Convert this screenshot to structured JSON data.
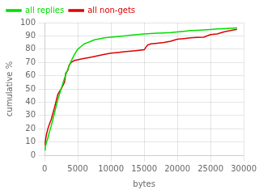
{
  "chart_data": {
    "type": "line",
    "xlabel": "bytes",
    "ylabel": "cumulative %",
    "xlim": [
      0,
      30000
    ],
    "ylim": [
      0,
      100
    ],
    "xticks": [
      0,
      5000,
      10000,
      15000,
      20000,
      25000,
      30000
    ],
    "yticks": [
      0,
      10,
      20,
      30,
      40,
      50,
      60,
      70,
      80,
      90,
      100
    ],
    "grid": true,
    "legend": "upper left",
    "series": [
      {
        "name": "all replies",
        "color": "#00dd00",
        "x": [
          0,
          100,
          200,
          300,
          500,
          700,
          1000,
          1500,
          2000,
          2500,
          3000,
          3500,
          4000,
          4500,
          5000,
          5500,
          6000,
          6500,
          7000,
          7500,
          8000,
          9000,
          10000,
          11000,
          12000,
          13000,
          14000,
          15000,
          16000,
          17000,
          18000,
          19000,
          20000,
          21000,
          22000,
          23000,
          24000,
          25000,
          26000,
          27000,
          28000,
          29000
        ],
        "values": [
          4,
          6,
          8,
          10,
          13,
          17,
          22,
          32,
          42,
          50,
          58,
          65,
          71,
          76,
          80,
          82,
          84,
          85,
          86,
          87,
          87.5,
          88.5,
          89,
          89.5,
          90,
          90.5,
          91,
          91.5,
          91.8,
          92,
          92.3,
          92.5,
          93,
          93.5,
          94,
          94.2,
          94.5,
          94.8,
          95.2,
          95.5,
          95.8,
          96
        ]
      },
      {
        "name": "all non-gets",
        "color": "#dd0000",
        "x": [
          0,
          100,
          200,
          300,
          500,
          700,
          1000,
          1500,
          2000,
          2500,
          3000,
          3200,
          3500,
          3700,
          4000,
          4500,
          5000,
          5500,
          6000,
          7000,
          8000,
          9000,
          10000,
          11000,
          12000,
          13000,
          14000,
          15000,
          15500,
          16000,
          17000,
          18000,
          19000,
          20000,
          21000,
          22000,
          23000,
          24000,
          25000,
          26000,
          27000,
          28000,
          29000
        ],
        "values": [
          8,
          10,
          13,
          16,
          20,
          23,
          27,
          36,
          46,
          50,
          55,
          62,
          64,
          68,
          70,
          71.5,
          72,
          72.5,
          73,
          74,
          75,
          76,
          77,
          77.5,
          78,
          78.5,
          79,
          79.5,
          83,
          84,
          84.5,
          85,
          86,
          87.5,
          88,
          88.5,
          88.8,
          89,
          91,
          91.5,
          93,
          94,
          95
        ]
      }
    ]
  }
}
